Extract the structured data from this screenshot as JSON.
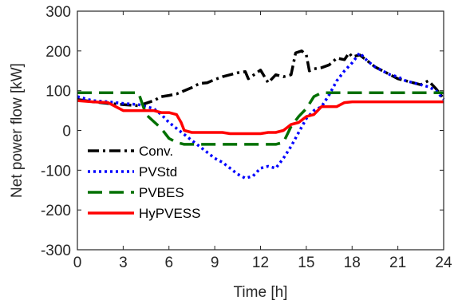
{
  "chart_data": {
    "type": "line",
    "xlabel": "Time [h]",
    "ylabel": "Net power flow [kW]",
    "xlim": [
      0,
      24
    ],
    "ylim": [
      -300,
      300
    ],
    "xticks": [
      0,
      3,
      6,
      9,
      12,
      15,
      18,
      21,
      24
    ],
    "yticks": [
      -300,
      -200,
      -100,
      0,
      100,
      200,
      300
    ],
    "grid": false,
    "legend_position": "lower-left",
    "series": [
      {
        "name": "Conv.",
        "color": "#000000",
        "style": "dashdot",
        "x": [
          0,
          1,
          2,
          3,
          4,
          5,
          5.5,
          6,
          6.5,
          7,
          7.5,
          8,
          8.5,
          9,
          9.5,
          10,
          10.5,
          11,
          11.2,
          11.5,
          12,
          12.5,
          13,
          13.5,
          14,
          14.3,
          14.7,
          15,
          15.2,
          15.5,
          16,
          16.5,
          17,
          17.5,
          17.8,
          18,
          18.5,
          19,
          19.5,
          20,
          20.5,
          21,
          21.5,
          22,
          22.5,
          23,
          23.5,
          24
        ],
        "y": [
          78,
          72,
          68,
          65,
          62,
          75,
          85,
          88,
          92,
          100,
          108,
          118,
          120,
          128,
          135,
          140,
          145,
          148,
          130,
          138,
          152,
          120,
          140,
          135,
          140,
          195,
          200,
          190,
          150,
          155,
          158,
          165,
          182,
          178,
          195,
          185,
          190,
          175,
          160,
          150,
          140,
          130,
          125,
          120,
          115,
          125,
          105,
          80
        ]
      },
      {
        "name": "PVStd",
        "color": "#0000ff",
        "style": "dotted",
        "x": [
          0,
          1,
          2,
          3,
          4,
          5,
          5.5,
          6,
          6.5,
          7,
          7.5,
          8,
          8.5,
          9,
          9.5,
          10,
          10.5,
          11,
          11.5,
          12,
          12.5,
          13,
          13.5,
          14,
          14.5,
          15,
          15.5,
          16,
          16.5,
          17,
          17.5,
          18,
          18.5,
          19,
          19.5,
          20,
          20.5,
          21,
          21.5,
          22,
          22.5,
          23,
          23.5,
          24
        ],
        "y": [
          85,
          75,
          72,
          68,
          65,
          55,
          40,
          20,
          5,
          -10,
          -25,
          -40,
          -55,
          -70,
          -80,
          -95,
          -110,
          -120,
          -115,
          -95,
          -90,
          -95,
          -70,
          -40,
          -5,
          30,
          50,
          60,
          90,
          125,
          150,
          170,
          195,
          175,
          160,
          150,
          140,
          135,
          125,
          120,
          115,
          110,
          100,
          78
        ]
      },
      {
        "name": "PVBES",
        "color": "#007000",
        "style": "dashed",
        "x": [
          0,
          1,
          2,
          3,
          4,
          4.5,
          5.5,
          6,
          6.5,
          7,
          7.5,
          8,
          9,
          10,
          11,
          12,
          12.5,
          13,
          13.5,
          14,
          14.5,
          15,
          15.5,
          16,
          17,
          18,
          19,
          20,
          21,
          22,
          23,
          24
        ],
        "y": [
          95,
          95,
          95,
          95,
          95,
          40,
          5,
          -20,
          -30,
          -35,
          -35,
          -35,
          -35,
          -35,
          -35,
          -35,
          -35,
          -35,
          -30,
          10,
          35,
          55,
          85,
          95,
          95,
          95,
          95,
          95,
          95,
          95,
          95,
          95
        ]
      },
      {
        "name": "HyPVESS",
        "color": "#ff0000",
        "style": "solid",
        "x": [
          0,
          1,
          2,
          3,
          4,
          5,
          5.5,
          6,
          6.5,
          6.8,
          7,
          7.5,
          8,
          8.5,
          9,
          9.5,
          10,
          10.5,
          11,
          11.5,
          12,
          12.5,
          13,
          13.5,
          14,
          14.5,
          15,
          15.5,
          16,
          17,
          17.5,
          18,
          19,
          20,
          21,
          22,
          23,
          24
        ],
        "y": [
          75,
          72,
          70,
          50,
          50,
          50,
          45,
          45,
          40,
          20,
          0,
          -5,
          -5,
          -5,
          -5,
          -5,
          -8,
          -8,
          -8,
          -8,
          -8,
          -5,
          -5,
          0,
          15,
          20,
          35,
          40,
          60,
          60,
          70,
          72,
          72,
          72,
          72,
          72,
          72,
          72
        ]
      }
    ]
  }
}
